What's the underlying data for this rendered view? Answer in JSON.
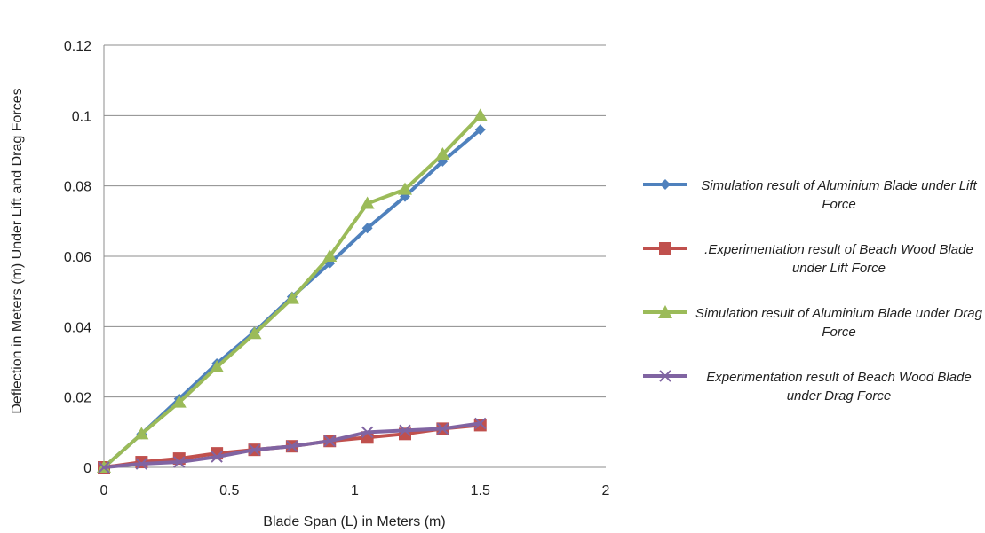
{
  "chart_data": {
    "type": "line",
    "xlabel": "Blade Span (L) in Meters (m)",
    "ylabel": "Deflection in Meters (m) Under Lift and Drag Forces",
    "xlim": [
      0,
      2
    ],
    "ylim": [
      0,
      0.12
    ],
    "xticks": [
      "0",
      "0.5",
      "1",
      "1.5",
      "2"
    ],
    "yticks": [
      "0",
      "0.02",
      "0.04",
      "0.06",
      "0.08",
      "0.1",
      "0.12"
    ],
    "grid": "horizontal",
    "legend_position": "right",
    "x": [
      0,
      0.15,
      0.3,
      0.45,
      0.6,
      0.75,
      0.9,
      1.05,
      1.2,
      1.35,
      1.5
    ],
    "series": [
      {
        "name": "Simulation result of Aluminium Blade under Lift Force",
        "color": "#4f81bd",
        "marker": "diamond",
        "values": [
          0,
          0.0095,
          0.0195,
          0.0295,
          0.0385,
          0.0485,
          0.058,
          0.068,
          0.077,
          0.087,
          0.096
        ]
      },
      {
        "name": ".Experimentation result of Beach Wood Blade under Lift Force",
        "color": "#c0504d",
        "marker": "square",
        "values": [
          0,
          0.0015,
          0.0025,
          0.004,
          0.005,
          0.006,
          0.0075,
          0.0085,
          0.0095,
          0.011,
          0.012
        ]
      },
      {
        "name": "Simulation result of Aluminium Blade under Drag Force",
        "color": "#9bbb59",
        "marker": "triangle",
        "values": [
          0,
          0.0095,
          0.0185,
          0.0285,
          0.038,
          0.048,
          0.06,
          0.075,
          0.079,
          0.089,
          0.1
        ]
      },
      {
        "name": "Experimentation result of Beach Wood Blade under Drag Force",
        "color": "#8064a2",
        "marker": "x",
        "values": [
          0,
          0.001,
          0.0015,
          0.003,
          0.005,
          0.006,
          0.0075,
          0.01,
          0.0105,
          0.011,
          0.0125
        ]
      }
    ]
  }
}
